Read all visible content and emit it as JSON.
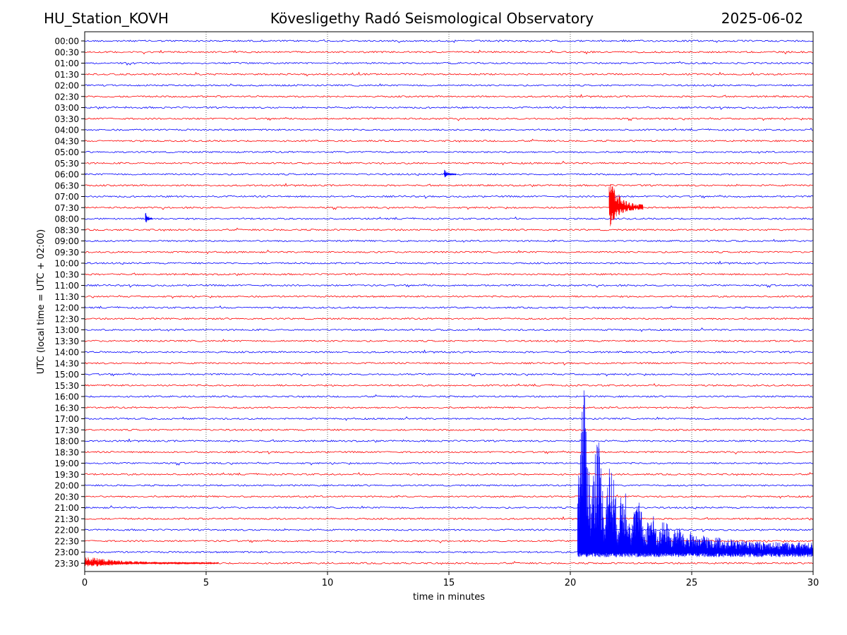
{
  "header": {
    "station": "HU_Station_KOVH",
    "title": "Kövesligethy Radó Seismological Observatory",
    "date": "2025-06-02"
  },
  "chart_data": {
    "type": "line",
    "title": "Kövesligethy Radó Seismological Observatory",
    "xlabel": "time in minutes",
    "ylabel": "UTC (local time = UTC + 02:00)",
    "xlim": [
      0,
      30
    ],
    "xticks": [
      0,
      5,
      10,
      15,
      20,
      25,
      30
    ],
    "grid": "vertical dotted lines at x ticks",
    "trace_colors": [
      "#0000ff",
      "#ff0000"
    ],
    "rows": [
      "00:00",
      "00:30",
      "01:00",
      "01:30",
      "02:00",
      "02:30",
      "03:00",
      "03:30",
      "04:00",
      "04:30",
      "05:00",
      "05:30",
      "06:00",
      "06:30",
      "07:00",
      "07:30",
      "08:00",
      "08:30",
      "09:00",
      "09:30",
      "10:00",
      "10:30",
      "11:00",
      "11:30",
      "12:00",
      "12:30",
      "13:00",
      "13:30",
      "14:00",
      "14:30",
      "15:00",
      "15:30",
      "16:00",
      "16:30",
      "17:00",
      "17:30",
      "18:00",
      "18:30",
      "19:00",
      "19:30",
      "20:00",
      "20:30",
      "21:00",
      "21:30",
      "22:00",
      "22:30",
      "23:00",
      "23:30"
    ],
    "events": [
      {
        "row": "07:30",
        "start_min": 21.6,
        "duration_min": 1.4,
        "amplitude": 3.0,
        "note": "local event, high-frequency burst"
      },
      {
        "row": "08:00",
        "start_min": 2.5,
        "duration_min": 0.3,
        "amplitude": 0.9
      },
      {
        "row": "06:00",
        "start_min": 14.8,
        "duration_min": 0.5,
        "amplitude": 0.5
      },
      {
        "row": "23:00",
        "start_min": 20.3,
        "duration_min": 9.7,
        "amplitude": 16.0,
        "note": "large teleseismic event, clipped trace extends over many rows"
      },
      {
        "row": "23:30",
        "start_min": 0.0,
        "duration_min": 5.5,
        "amplitude": 0.6,
        "note": "continued coda"
      }
    ]
  }
}
